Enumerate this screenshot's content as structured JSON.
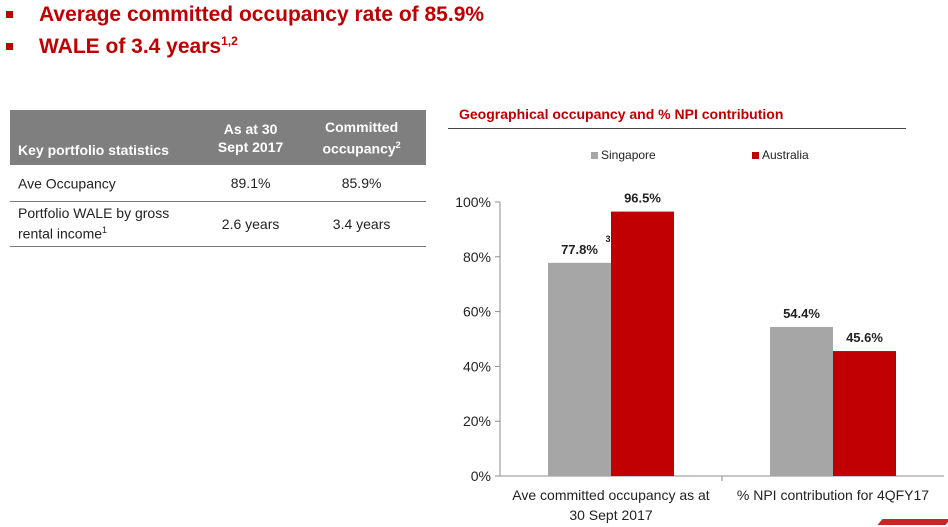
{
  "colors": {
    "accent": "#c00000",
    "header_bg": "#7f7f7f",
    "singapore": "#a6a6a6",
    "australia": "#c00000"
  },
  "bullets": [
    {
      "text": "Average committed occupancy rate of 85.9%",
      "sup": ""
    },
    {
      "text": "WALE of 3.4 years",
      "sup": "1,2"
    }
  ],
  "table": {
    "headers": [
      {
        "text": "Key portfolio statistics",
        "sup": ""
      },
      {
        "text": "As at 30 Sept 2017",
        "sup": ""
      },
      {
        "text": "Committed occupancy",
        "sup": "2"
      }
    ],
    "rows": [
      {
        "label": "Ave Occupancy",
        "label_sup": "",
        "as_at": "89.1%",
        "committed": "85.9%"
      },
      {
        "label": "Portfolio WALE by gross rental income",
        "label_sup": "1",
        "as_at": "2.6 years",
        "committed": "3.4 years"
      }
    ]
  },
  "chart_data": {
    "type": "bar",
    "title": "Geographical occupancy and % NPI contribution",
    "categories": [
      "Ave committed occupancy as at 30 Sept 2017",
      "% NPI contribution for 4QFY17"
    ],
    "series": [
      {
        "name": "Singapore",
        "values": [
          77.8,
          54.4
        ],
        "labels": [
          "77.8%",
          "54.4%"
        ],
        "label_sups": [
          "3",
          ""
        ]
      },
      {
        "name": "Australia",
        "values": [
          96.5,
          45.6
        ],
        "labels": [
          "96.5%",
          "45.6%"
        ],
        "label_sups": [
          "",
          ""
        ]
      }
    ],
    "ylim": [
      0,
      100
    ],
    "yticks": [
      0,
      20,
      40,
      60,
      80,
      100
    ],
    "ytick_labels": [
      "0%",
      "20%",
      "40%",
      "60%",
      "80%",
      "100%"
    ],
    "xlabel": "",
    "ylabel": "",
    "legend": "top",
    "grid": false
  }
}
